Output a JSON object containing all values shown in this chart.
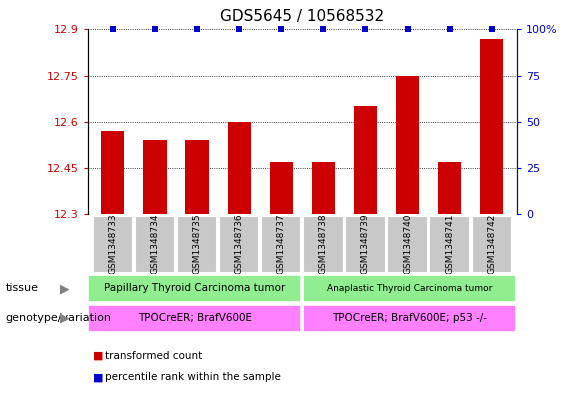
{
  "title": "GDS5645 / 10568532",
  "samples": [
    "GSM1348733",
    "GSM1348734",
    "GSM1348735",
    "GSM1348736",
    "GSM1348737",
    "GSM1348738",
    "GSM1348739",
    "GSM1348740",
    "GSM1348741",
    "GSM1348742"
  ],
  "transformed_counts": [
    12.57,
    12.54,
    12.54,
    12.6,
    12.47,
    12.47,
    12.65,
    12.75,
    12.47,
    12.87
  ],
  "ylim_left": [
    12.3,
    12.9
  ],
  "ylim_right": [
    0,
    100
  ],
  "yticks_left": [
    12.3,
    12.45,
    12.6,
    12.75,
    12.9
  ],
  "yticks_right": [
    0,
    25,
    50,
    75,
    100
  ],
  "bar_color": "#cc0000",
  "dot_color": "#0000cc",
  "bar_width": 0.55,
  "tissue_labels": [
    "Papillary Thyroid Carcinoma tumor",
    "Anaplastic Thyroid Carcinoma tumor"
  ],
  "tissue_color": "#90ee90",
  "genotype_labels": [
    "TPOCreER; BrafV600E",
    "TPOCreER; BrafV600E; p53 -/-"
  ],
  "genotype_color": "#ff80ff",
  "legend_transformed": "transformed count",
  "legend_percentile": "percentile rank within the sample",
  "label_tissue": "tissue",
  "label_genotype": "genotype/variation",
  "left_color": "#cc0000",
  "right_color": "#0000cc",
  "title_fontsize": 11,
  "tick_fontsize": 8,
  "sample_label_fontsize": 6.5,
  "row_label_fontsize": 8,
  "group_label_fontsize": 7.5,
  "legend_fontsize": 7.5,
  "dot_size": 4,
  "gray_color": "#c8c8c8"
}
